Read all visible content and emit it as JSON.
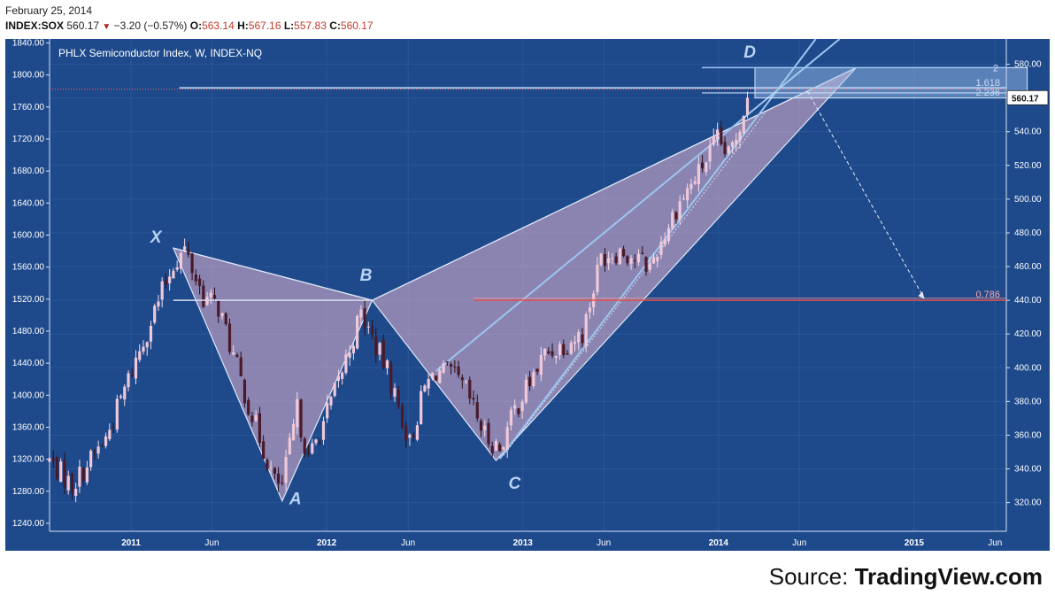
{
  "header": {
    "date": "February 25, 2014",
    "symbol": "INDEX:SOX",
    "last": "560.17",
    "change": "−3.20 (−0.57%)",
    "o_label": "O:",
    "o_value": "563.14",
    "h_label": "H:",
    "h_value": "567.16",
    "l_label": "L:",
    "l_value": "557.83",
    "c_label": "C:",
    "c_value": "560.17"
  },
  "chart_title": "PHLX Semiconductor Index, W, INDEX-NQ",
  "source": {
    "prefix": "Source:",
    "name": "TradingView.com"
  },
  "colors": {
    "background": "#1e4a8c",
    "grid": "#2a5699",
    "bull": "#f0c8d8",
    "bear": "#4a1a2a",
    "pattern_fill": "#e6b4d0",
    "pattern_line": "#dce6f5",
    "channel": "#9cc6f0",
    "target_box": "#a6c8ee",
    "level_red": "#e05050",
    "last_tag": "#ffffff"
  },
  "chart_data": {
    "type": "candlestick",
    "left_axis": {
      "ylim": [
        1230,
        1845
      ],
      "ticks": [
        "1240.00",
        "1280.00",
        "1320.00",
        "1360.00",
        "1400.00",
        "1440.00",
        "1480.00",
        "1520.00",
        "1560.00",
        "1600.00",
        "1640.00",
        "1680.00",
        "1720.00",
        "1760.00",
        "1800.00",
        "1840.00"
      ]
    },
    "right_axis": {
      "ylim": [
        303,
        595
      ],
      "ticks": [
        "320.00",
        "340.00",
        "360.00",
        "380.00",
        "400.00",
        "420.00",
        "440.00",
        "460.00",
        "480.00",
        "500.00",
        "520.00",
        "540.00",
        "560.00",
        "580.00"
      ]
    },
    "x_axis": {
      "start": "2010-08-02",
      "end": "2015-06-22",
      "ticks": [
        {
          "label": "2011",
          "date": "2011-01-01"
        },
        {
          "label": "Jun",
          "date": "2011-06-01"
        },
        {
          "label": "2012",
          "date": "2012-01-01"
        },
        {
          "label": "Jun",
          "date": "2012-06-01"
        },
        {
          "label": "2013",
          "date": "2013-01-01"
        },
        {
          "label": "Jun",
          "date": "2013-06-01"
        },
        {
          "label": "2014",
          "date": "2014-01-01"
        },
        {
          "label": "Jun",
          "date": "2014-06-01"
        },
        {
          "label": "2015",
          "date": "2015-01-01"
        },
        {
          "label": "Jun",
          "date": "2015-06-01"
        }
      ]
    },
    "anchors": [
      {
        "date": "2010-08-02",
        "close": 345
      },
      {
        "date": "2010-09-13",
        "close": 330
      },
      {
        "date": "2010-11-15",
        "close": 358
      },
      {
        "date": "2011-02-07",
        "close": 428
      },
      {
        "date": "2011-03-21",
        "close": 462
      },
      {
        "date": "2011-04-11",
        "close": 470
      },
      {
        "date": "2011-05-16",
        "close": 442
      },
      {
        "date": "2011-06-13",
        "close": 436
      },
      {
        "date": "2011-08-01",
        "close": 385
      },
      {
        "date": "2011-09-26",
        "close": 332
      },
      {
        "date": "2011-10-10",
        "close": 330
      },
      {
        "date": "2011-11-07",
        "close": 375
      },
      {
        "date": "2011-11-28",
        "close": 345
      },
      {
        "date": "2012-01-16",
        "close": 385
      },
      {
        "date": "2012-03-05",
        "close": 432
      },
      {
        "date": "2012-04-23",
        "close": 398
      },
      {
        "date": "2012-06-04",
        "close": 355
      },
      {
        "date": "2012-07-02",
        "close": 388
      },
      {
        "date": "2012-07-23",
        "close": 398
      },
      {
        "date": "2012-08-20",
        "close": 396
      },
      {
        "date": "2012-09-17",
        "close": 386
      },
      {
        "date": "2012-10-22",
        "close": 360
      },
      {
        "date": "2012-11-19",
        "close": 352
      },
      {
        "date": "2012-12-17",
        "close": 375
      },
      {
        "date": "2013-02-11",
        "close": 408
      },
      {
        "date": "2013-04-22",
        "close": 420
      },
      {
        "date": "2013-05-27",
        "close": 466
      },
      {
        "date": "2013-07-01",
        "close": 470
      },
      {
        "date": "2013-08-26",
        "close": 460
      },
      {
        "date": "2013-10-14",
        "close": 495
      },
      {
        "date": "2013-11-18",
        "close": 512
      },
      {
        "date": "2013-12-30",
        "close": 535
      },
      {
        "date": "2014-01-20",
        "close": 525
      },
      {
        "date": "2014-02-03",
        "close": 538
      },
      {
        "date": "2014-02-24",
        "close": 560.17
      }
    ],
    "pattern": {
      "points": [
        {
          "label": "X",
          "date": "2011-03-21",
          "price": 471
        },
        {
          "label": "A",
          "date": "2011-10-10",
          "price": 321
        },
        {
          "label": "B",
          "date": "2012-03-26",
          "price": 440
        },
        {
          "label": "C",
          "date": "2012-11-12",
          "price": 345
        },
        {
          "label": "D",
          "date": "2014-09-15",
          "price": 578
        }
      ]
    },
    "levels": [
      {
        "label": "0.786",
        "price": 440,
        "from": "2012-10-01"
      },
      {
        "label": "2",
        "price": 578,
        "from": "2013-12-01"
      },
      {
        "label": "1.618",
        "price": 566,
        "from": "2011-04-01"
      },
      {
        "label": "2.236",
        "price": 563,
        "from": "2013-12-01"
      }
    ],
    "target_zone": {
      "from": "2014-03-10",
      "to": "2015-07-31",
      "low": 560,
      "high": 578
    },
    "projection": {
      "from_date": "2014-06-16",
      "from_price": 564,
      "to_date": "2015-01-20",
      "to_price": 441
    }
  }
}
